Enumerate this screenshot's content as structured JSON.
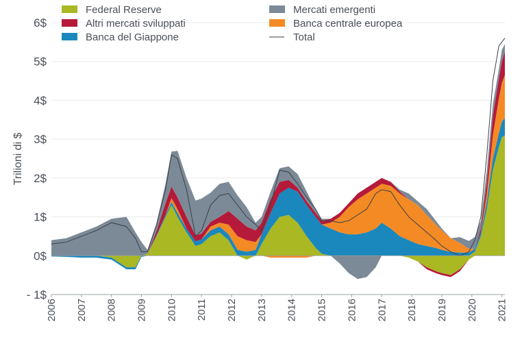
{
  "chart_data": {
    "type": "area",
    "stacked": true,
    "ylabel": "Trilioni di $",
    "ylim": [
      -1,
      6
    ],
    "yticks": [
      -1,
      0,
      1,
      2,
      3,
      4,
      5,
      6
    ],
    "ytick_labels": [
      "- 1$",
      "0$",
      "1$",
      "2$",
      "3$",
      "4$",
      "5$",
      "6$"
    ],
    "xlim": [
      2006,
      2021.1
    ],
    "xticks": [
      "2006",
      "2007",
      "2008",
      "2009",
      "2010",
      "2011",
      "2012",
      "2013",
      "2014",
      "2015",
      "2016",
      "2017",
      "2018",
      "2019",
      "2020",
      "2021"
    ],
    "legend_position": "top",
    "x": [
      2006.0,
      2006.5,
      2007.0,
      2007.5,
      2008.0,
      2008.5,
      2008.8,
      2009.0,
      2009.2,
      2009.5,
      2009.8,
      2010.0,
      2010.2,
      2010.5,
      2010.8,
      2011.0,
      2011.3,
      2011.6,
      2011.9,
      2012.2,
      2012.5,
      2012.8,
      2013.0,
      2013.3,
      2013.6,
      2013.9,
      2014.2,
      2014.5,
      2014.8,
      2015.0,
      2015.3,
      2015.6,
      2015.9,
      2016.2,
      2016.5,
      2016.8,
      2017.0,
      2017.3,
      2017.6,
      2017.9,
      2018.2,
      2018.5,
      2018.8,
      2019.0,
      2019.3,
      2019.6,
      2019.9,
      2020.1,
      2020.3,
      2020.5,
      2020.7,
      2020.9,
      2021.0,
      2021.1
    ],
    "series": [
      {
        "name": "Federal Reserve",
        "color": "#a9b823",
        "values": [
          0.0,
          0.0,
          0.0,
          0.0,
          -0.05,
          -0.3,
          -0.3,
          0.0,
          0.05,
          0.5,
          1.0,
          1.3,
          1.0,
          0.6,
          0.25,
          0.3,
          0.5,
          0.6,
          0.4,
          0.0,
          -0.1,
          0.0,
          0.3,
          0.7,
          1.0,
          1.05,
          0.85,
          0.5,
          0.2,
          0.05,
          0.0,
          0.0,
          0.0,
          0.0,
          0.0,
          0.0,
          0.0,
          0.0,
          0.0,
          -0.05,
          -0.15,
          -0.3,
          -0.4,
          -0.45,
          -0.5,
          -0.35,
          -0.1,
          0.1,
          0.5,
          1.2,
          2.2,
          2.8,
          3.05,
          3.1
        ]
      },
      {
        "name": "Banca del Giappone",
        "color": "#1a87bd",
        "values": [
          -0.02,
          -0.03,
          -0.05,
          -0.05,
          -0.05,
          -0.05,
          -0.05,
          -0.03,
          0.0,
          0.03,
          0.05,
          0.08,
          0.1,
          0.1,
          0.12,
          0.12,
          0.15,
          0.15,
          0.15,
          0.15,
          0.1,
          0.15,
          0.25,
          0.4,
          0.6,
          0.7,
          0.8,
          0.8,
          0.8,
          0.75,
          0.7,
          0.6,
          0.55,
          0.55,
          0.6,
          0.7,
          0.85,
          0.7,
          0.5,
          0.4,
          0.3,
          0.25,
          0.2,
          0.15,
          0.1,
          0.08,
          0.08,
          0.08,
          0.1,
          0.2,
          0.3,
          0.35,
          0.4,
          0.45
        ]
      },
      {
        "name": "Banca centrale europea",
        "color": "#f48a24",
        "values": [
          0.0,
          0.0,
          0.0,
          0.0,
          0.0,
          0.0,
          0.0,
          0.0,
          0.0,
          0.0,
          0.0,
          0.1,
          0.1,
          0.0,
          0.0,
          0.0,
          0.1,
          0.1,
          0.25,
          0.35,
          0.3,
          0.2,
          0.0,
          -0.05,
          -0.05,
          -0.05,
          -0.05,
          -0.05,
          0.0,
          0.0,
          0.15,
          0.4,
          0.7,
          0.9,
          1.0,
          1.05,
          1.0,
          1.1,
          1.1,
          1.05,
          1.0,
          0.8,
          0.6,
          0.5,
          0.35,
          0.25,
          0.1,
          0.0,
          0.0,
          0.2,
          0.6,
          0.9,
          1.0,
          1.1
        ]
      },
      {
        "name": "Altri mercati sviluppati",
        "color": "#b51a3a",
        "values": [
          0.0,
          0.0,
          0.0,
          0.0,
          0.0,
          0.0,
          0.0,
          0.0,
          0.0,
          0.1,
          0.3,
          0.3,
          0.3,
          0.3,
          0.15,
          0.15,
          0.12,
          0.15,
          0.35,
          0.45,
          0.35,
          0.3,
          0.3,
          0.35,
          0.3,
          0.2,
          0.1,
          0.1,
          0.1,
          0.1,
          0.1,
          0.1,
          0.1,
          0.15,
          0.15,
          0.15,
          0.15,
          0.1,
          0.05,
          0.0,
          0.0,
          -0.05,
          -0.05,
          -0.05,
          -0.05,
          -0.05,
          0.0,
          0.0,
          0.1,
          0.3,
          0.5,
          0.5,
          0.55,
          0.6
        ]
      },
      {
        "name": "Mercati emergenti",
        "color": "#7c8a97",
        "values": [
          0.4,
          0.45,
          0.6,
          0.75,
          0.95,
          1.0,
          0.6,
          0.35,
          0.1,
          0.2,
          0.5,
          0.9,
          1.2,
          1.0,
          0.9,
          0.9,
          0.75,
          0.85,
          0.75,
          0.6,
          0.5,
          0.2,
          0.15,
          0.2,
          0.35,
          0.35,
          0.35,
          0.25,
          0.1,
          0.05,
          0.0,
          -0.2,
          -0.45,
          -0.6,
          -0.55,
          -0.3,
          0.0,
          0.0,
          0.05,
          0.15,
          0.1,
          0.15,
          0.1,
          0.05,
          0.0,
          0.15,
          0.2,
          0.3,
          0.2,
          0.3,
          0.3,
          0.25,
          0.3,
          0.2
        ]
      }
    ],
    "total": {
      "name": "Total",
      "color": "#3a3f47",
      "values": [
        0.3,
        0.35,
        0.5,
        0.65,
        0.85,
        0.75,
        0.45,
        0.1,
        0.1,
        0.8,
        1.7,
        2.6,
        2.5,
        1.7,
        0.5,
        0.65,
        1.3,
        1.55,
        1.6,
        1.3,
        1.0,
        0.8,
        0.65,
        1.3,
        2.2,
        2.15,
        1.85,
        1.5,
        1.2,
        0.9,
        0.9,
        0.85,
        0.9,
        1.05,
        1.2,
        1.6,
        1.7,
        1.65,
        1.3,
        1.0,
        0.8,
        0.6,
        0.4,
        0.25,
        0.1,
        0.0,
        0.1,
        0.4,
        1.0,
        2.6,
        4.5,
        5.4,
        5.5,
        5.6
      ]
    }
  }
}
